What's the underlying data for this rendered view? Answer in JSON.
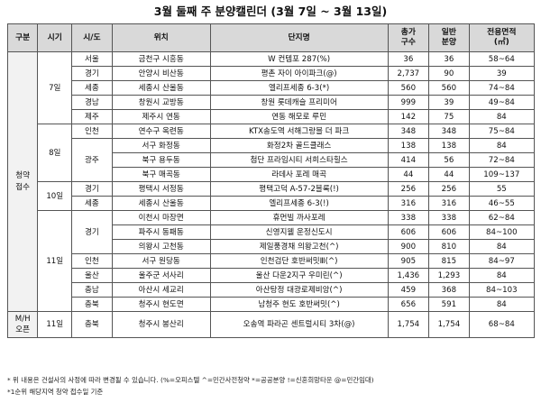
{
  "title": "3월 둘째 주 분양캘린더 (3월 7일 ~ 3월 13일)",
  "headers": {
    "gubun": "구분",
    "sigi": "시기",
    "sido": "시/도",
    "location": "위치",
    "complex": "단지명",
    "total_line1": "총가",
    "total_line2": "구수",
    "general_line1": "일반",
    "general_line2": "분양",
    "area_line1": "전용면적",
    "area_line2": "(㎡)"
  },
  "groups": {
    "cheongyak": "청약\n접수",
    "mh": "M/H\n오픈"
  },
  "dates": {
    "d7": "7일",
    "d8": "8일",
    "d10": "10일",
    "d11": "11일",
    "d11b": "11일"
  },
  "regions": {
    "r1": "서울",
    "r2": "경기",
    "r3": "세종",
    "r4": "경남",
    "r5": "제주",
    "r6": "인천",
    "r7": "광주",
    "r8": "경기",
    "r9": "세종",
    "r10": "경기",
    "r11": "인천",
    "r12": "울산",
    "r13": "충남",
    "r14": "충북",
    "r15": "충북"
  },
  "rows": [
    {
      "location": "금천구 시흥동",
      "complex": "W 컨템포 287(%)",
      "total": "36",
      "general": "36",
      "area": "58~64"
    },
    {
      "location": "안양시 비산동",
      "complex": "평촌 자이 아이파크(@)",
      "total": "2,737",
      "general": "90",
      "area": "39"
    },
    {
      "location": "세종시 산울동",
      "complex": "엘리프세종 6-3(*)",
      "total": "560",
      "general": "560",
      "area": "74~84"
    },
    {
      "location": "창원시 교방동",
      "complex": "창원 롯데캐슬 프리미어",
      "total": "999",
      "general": "39",
      "area": "49~84"
    },
    {
      "location": "제주시 연동",
      "complex": "연동 해모로 루민",
      "total": "142",
      "area": "84",
      "general": "75"
    },
    {
      "location": "연수구 옥련동",
      "complex": "KTX송도역 서해그랑블 더 파크",
      "total": "348",
      "general": "348",
      "area": "75~84"
    },
    {
      "location": "서구 화정동",
      "complex": "화정2차 골드클래스",
      "total": "138",
      "general": "138",
      "area": "84"
    },
    {
      "location": "북구 용두동",
      "complex": "첨단 프라임시티 서희스타힐스",
      "total": "414",
      "general": "56",
      "area": "72~84"
    },
    {
      "location": "북구 매곡동",
      "complex": "라데사 포레 매곡",
      "total": "44",
      "general": "44",
      "area": "109~137"
    },
    {
      "location": "평택시 서정동",
      "complex": "평택고덕 A-57-2블록(!)",
      "total": "256",
      "general": "256",
      "area": "55"
    },
    {
      "location": "세종시 산울동",
      "complex": "엘리프세종 6-3(!)",
      "total": "316",
      "general": "316",
      "area": "46~55"
    },
    {
      "location": "이천시 마장면",
      "complex": "휴먼빌 까사포레",
      "total": "338",
      "general": "338",
      "area": "62~84"
    },
    {
      "location": "파주시 동패동",
      "complex": "신영지웰 운정신도시",
      "total": "606",
      "general": "606",
      "area": "84~100"
    },
    {
      "location": "의왕시 고천동",
      "complex": "제일풍경채 의왕고천(^)",
      "total": "900",
      "general": "810",
      "area": "84"
    },
    {
      "location": "서구 원당동",
      "complex": "인천검단 호반써밋Ⅲ(^)",
      "total": "905",
      "general": "815",
      "area": "84~97"
    },
    {
      "location": "울주군 서사리",
      "complex": "울산 다운2지구 우미린(^)",
      "total": "1,436",
      "general": "1,293",
      "area": "84"
    },
    {
      "location": "아산시 세교리",
      "complex": "아산탕정 대광로제비앙(^)",
      "total": "459",
      "general": "368",
      "area": "84~103"
    },
    {
      "location": "청주시 현도면",
      "complex": "남청주 현도 호반써밋(^)",
      "total": "656",
      "general": "591",
      "area": "84"
    },
    {
      "location": "청주시 봉산리",
      "complex": "오송역 파라곤 센트럴시티 3차(@)",
      "total": "1,754",
      "general": "1,754",
      "area": "68~84"
    }
  ],
  "notes": {
    "line1": "* 위 내용은 건설사의 사정에 따라 변경될 수 있습니다. (%=오피스텔 ^=민간사전청약 *=공공분양 !=신혼희망타운 @=민간임대)",
    "line2": "*1순위 해당지역 청약 접수일 기준"
  }
}
